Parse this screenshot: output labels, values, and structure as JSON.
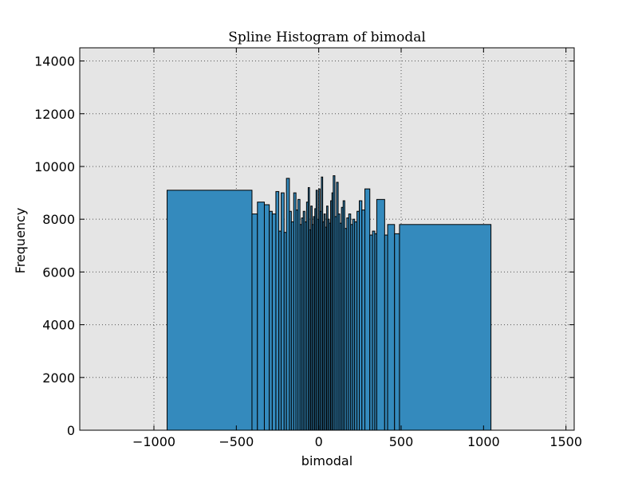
{
  "chart_data": {
    "type": "bar",
    "title": "Spline Histogram of bimodal",
    "xlabel": "bimodal",
    "ylabel": "Frequency",
    "xlim": [
      -1450,
      1550
    ],
    "ylim": [
      0,
      14500
    ],
    "xticks": [
      -1000,
      -500,
      0,
      500,
      1000,
      1500
    ],
    "xtick_labels": [
      "−1000",
      "−500",
      "0",
      "500",
      "1000",
      "1500"
    ],
    "yticks": [
      0,
      2000,
      4000,
      6000,
      8000,
      10000,
      12000,
      14000
    ],
    "ytick_labels": [
      "0",
      "2000",
      "4000",
      "6000",
      "8000",
      "10000",
      "12000",
      "14000"
    ],
    "grid": true,
    "colors": {
      "bar_fill": "#348abd",
      "bar_edge": "#000000",
      "plot_bg": "#e5e5e5",
      "grid": "#555555"
    },
    "bins": [
      {
        "x0": -920,
        "x1": -405,
        "value": 9100
      },
      {
        "x0": -405,
        "x1": -372,
        "value": 8200
      },
      {
        "x0": -372,
        "x1": -330,
        "value": 8650
      },
      {
        "x0": -330,
        "x1": -300,
        "value": 8550
      },
      {
        "x0": -300,
        "x1": -282,
        "value": 8300
      },
      {
        "x0": -282,
        "x1": -260,
        "value": 8200
      },
      {
        "x0": -260,
        "x1": -242,
        "value": 9050
      },
      {
        "x0": -242,
        "x1": -228,
        "value": 7550
      },
      {
        "x0": -228,
        "x1": -210,
        "value": 9000
      },
      {
        "x0": -210,
        "x1": -196,
        "value": 7500
      },
      {
        "x0": -196,
        "x1": -178,
        "value": 9550
      },
      {
        "x0": -178,
        "x1": -166,
        "value": 8300
      },
      {
        "x0": -166,
        "x1": -152,
        "value": 7900
      },
      {
        "x0": -152,
        "x1": -138,
        "value": 9000
      },
      {
        "x0": -138,
        "x1": -126,
        "value": 8350
      },
      {
        "x0": -126,
        "x1": -114,
        "value": 8750
      },
      {
        "x0": -114,
        "x1": -104,
        "value": 7800
      },
      {
        "x0": -104,
        "x1": -94,
        "value": 8050
      },
      {
        "x0": -94,
        "x1": -84,
        "value": 8300
      },
      {
        "x0": -84,
        "x1": -74,
        "value": 7900
      },
      {
        "x0": -74,
        "x1": -64,
        "value": 8650
      },
      {
        "x0": -64,
        "x1": -56,
        "value": 9200
      },
      {
        "x0": -56,
        "x1": -48,
        "value": 7600
      },
      {
        "x0": -48,
        "x1": -40,
        "value": 8500
      },
      {
        "x0": -40,
        "x1": -32,
        "value": 7800
      },
      {
        "x0": -32,
        "x1": -24,
        "value": 8100
      },
      {
        "x0": -24,
        "x1": -16,
        "value": 8400
      },
      {
        "x0": -16,
        "x1": -8,
        "value": 9100
      },
      {
        "x0": -8,
        "x1": 0,
        "value": 8000
      },
      {
        "x0": 0,
        "x1": 8,
        "value": 9150
      },
      {
        "x0": 8,
        "x1": 16,
        "value": 8300
      },
      {
        "x0": 16,
        "x1": 24,
        "value": 9600
      },
      {
        "x0": 24,
        "x1": 32,
        "value": 7900
      },
      {
        "x0": 32,
        "x1": 40,
        "value": 8200
      },
      {
        "x0": 40,
        "x1": 48,
        "value": 7700
      },
      {
        "x0": 48,
        "x1": 56,
        "value": 8500
      },
      {
        "x0": 56,
        "x1": 64,
        "value": 8000
      },
      {
        "x0": 64,
        "x1": 72,
        "value": 7850
      },
      {
        "x0": 72,
        "x1": 80,
        "value": 8700
      },
      {
        "x0": 80,
        "x1": 88,
        "value": 9000
      },
      {
        "x0": 88,
        "x1": 98,
        "value": 9650
      },
      {
        "x0": 98,
        "x1": 108,
        "value": 8100
      },
      {
        "x0": 108,
        "x1": 118,
        "value": 9400
      },
      {
        "x0": 118,
        "x1": 128,
        "value": 8200
      },
      {
        "x0": 128,
        "x1": 138,
        "value": 7850
      },
      {
        "x0": 138,
        "x1": 148,
        "value": 8450
      },
      {
        "x0": 148,
        "x1": 158,
        "value": 8700
      },
      {
        "x0": 158,
        "x1": 170,
        "value": 7650
      },
      {
        "x0": 170,
        "x1": 182,
        "value": 8050
      },
      {
        "x0": 182,
        "x1": 194,
        "value": 8200
      },
      {
        "x0": 194,
        "x1": 206,
        "value": 7800
      },
      {
        "x0": 206,
        "x1": 218,
        "value": 8000
      },
      {
        "x0": 218,
        "x1": 232,
        "value": 7900
      },
      {
        "x0": 232,
        "x1": 246,
        "value": 8300
      },
      {
        "x0": 246,
        "x1": 262,
        "value": 8700
      },
      {
        "x0": 262,
        "x1": 280,
        "value": 8350
      },
      {
        "x0": 280,
        "x1": 310,
        "value": 9150
      },
      {
        "x0": 310,
        "x1": 326,
        "value": 7400
      },
      {
        "x0": 326,
        "x1": 340,
        "value": 7550
      },
      {
        "x0": 340,
        "x1": 352,
        "value": 7450
      },
      {
        "x0": 352,
        "x1": 400,
        "value": 8750
      },
      {
        "x0": 400,
        "x1": 418,
        "value": 7400
      },
      {
        "x0": 418,
        "x1": 460,
        "value": 7800
      },
      {
        "x0": 460,
        "x1": 490,
        "value": 7450
      },
      {
        "x0": 490,
        "x1": 1045,
        "value": 7800
      }
    ]
  }
}
